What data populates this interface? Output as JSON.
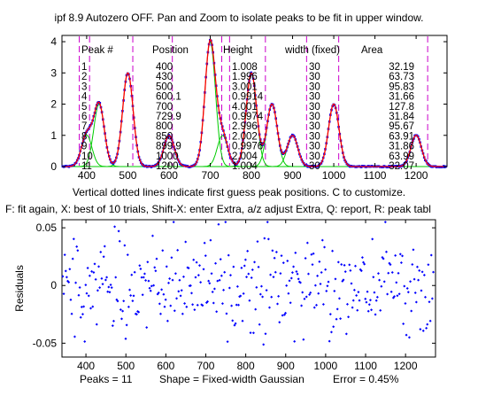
{
  "figure": {
    "title": "ipf 8.9 Autozero OFF. Pan and Zoom to isolate peaks to be fit in upper window.",
    "middle_line1": "Vertical dotted lines indicate first guess peak positions. C to customize.",
    "middle_line2": "F: fit again, X: best of 10 trials, Shift-X: enter Extra, a/z adjust Extra, Q: report, R: peak tabl",
    "footer": {
      "peaks": "Peaks = 11",
      "shape": "Shape = Fixed-width Gaussian",
      "error": "Error = 0.45%"
    }
  },
  "colors": {
    "data": "#0000ff",
    "fit": "#ff0000",
    "components": "#00cc00",
    "guess_lines": "#cc00cc",
    "axes": "#000000"
  },
  "chart_data": [
    {
      "type": "line",
      "xlim": [
        340,
        1275
      ],
      "ylim": [
        0,
        4.2
      ],
      "x_ticks": [
        400,
        500,
        600,
        700,
        800,
        900,
        1000,
        1100,
        1200
      ],
      "y_ticks": [
        0,
        1,
        2,
        3,
        4
      ],
      "x_tick_labels": [
        "400",
        "500",
        "600",
        "700",
        "800",
        "900",
        "1000",
        "1100",
        "1200"
      ],
      "y_tick_labels": [
        "0",
        "1",
        "2",
        "3",
        "4"
      ],
      "grid": false,
      "guess_positions": [
        382,
        407,
        512,
        608,
        728,
        747,
        834,
        934,
        1012,
        1228
      ],
      "peaks_table": {
        "headers": [
          "Peak #",
          "Position",
          "Height",
          "width (fixed)",
          "Area"
        ],
        "rows": [
          [
            "1",
            "400",
            "1.008",
            "30",
            "32.19"
          ],
          [
            "2",
            "430",
            "1.996",
            "30",
            "63.73"
          ],
          [
            "3",
            "500",
            "3.001",
            "30",
            "95.83"
          ],
          [
            "4",
            "600.1",
            "0.9914",
            "30",
            "31.66"
          ],
          [
            "5",
            "700",
            "4.001",
            "30",
            "127.8"
          ],
          [
            "6",
            "729.9",
            "0.9974",
            "30",
            "31.84"
          ],
          [
            "7",
            "800",
            "2.996",
            "30",
            "95.67"
          ],
          [
            "8",
            "850",
            "2.002",
            "30",
            "63.91"
          ],
          [
            "9",
            "899.9",
            "0.9976",
            "30",
            "31.86"
          ],
          [
            "10",
            "1000",
            "2.004",
            "30",
            "63.99"
          ],
          [
            "11",
            "1200",
            "1.004",
            "30",
            "32.07"
          ]
        ]
      },
      "series": [
        {
          "role": "fit",
          "peaks": [
            {
              "position": 400,
              "height": 1.008
            },
            {
              "position": 430,
              "height": 1.996
            },
            {
              "position": 500,
              "height": 3.001
            },
            {
              "position": 600.1,
              "height": 0.9914
            },
            {
              "position": 700,
              "height": 4.001
            },
            {
              "position": 729.9,
              "height": 0.9974
            },
            {
              "position": 800,
              "height": 2.996
            },
            {
              "position": 850,
              "height": 2.002
            },
            {
              "position": 899.9,
              "height": 0.9976
            },
            {
              "position": 1000,
              "height": 2.004
            },
            {
              "position": 1200,
              "height": 1.004
            }
          ],
          "width": 30
        }
      ]
    },
    {
      "type": "scatter",
      "xlim": [
        340,
        1275
      ],
      "ylim": [
        -0.062,
        0.057
      ],
      "x_ticks": [
        400,
        500,
        600,
        700,
        800,
        900,
        1000,
        1100,
        1200
      ],
      "y_ticks": [
        -0.05,
        0,
        0.05
      ],
      "x_tick_labels": [
        "400",
        "500",
        "600",
        "700",
        "800",
        "900",
        "1000",
        "1100",
        "1200"
      ],
      "y_tick_labels": [
        "-0.05",
        "0",
        "0.05"
      ],
      "ylabel": "Residuals",
      "grid": false,
      "x_start": 342,
      "x_step": 2.5,
      "count": 372,
      "noise_sd": 0.02
    }
  ]
}
